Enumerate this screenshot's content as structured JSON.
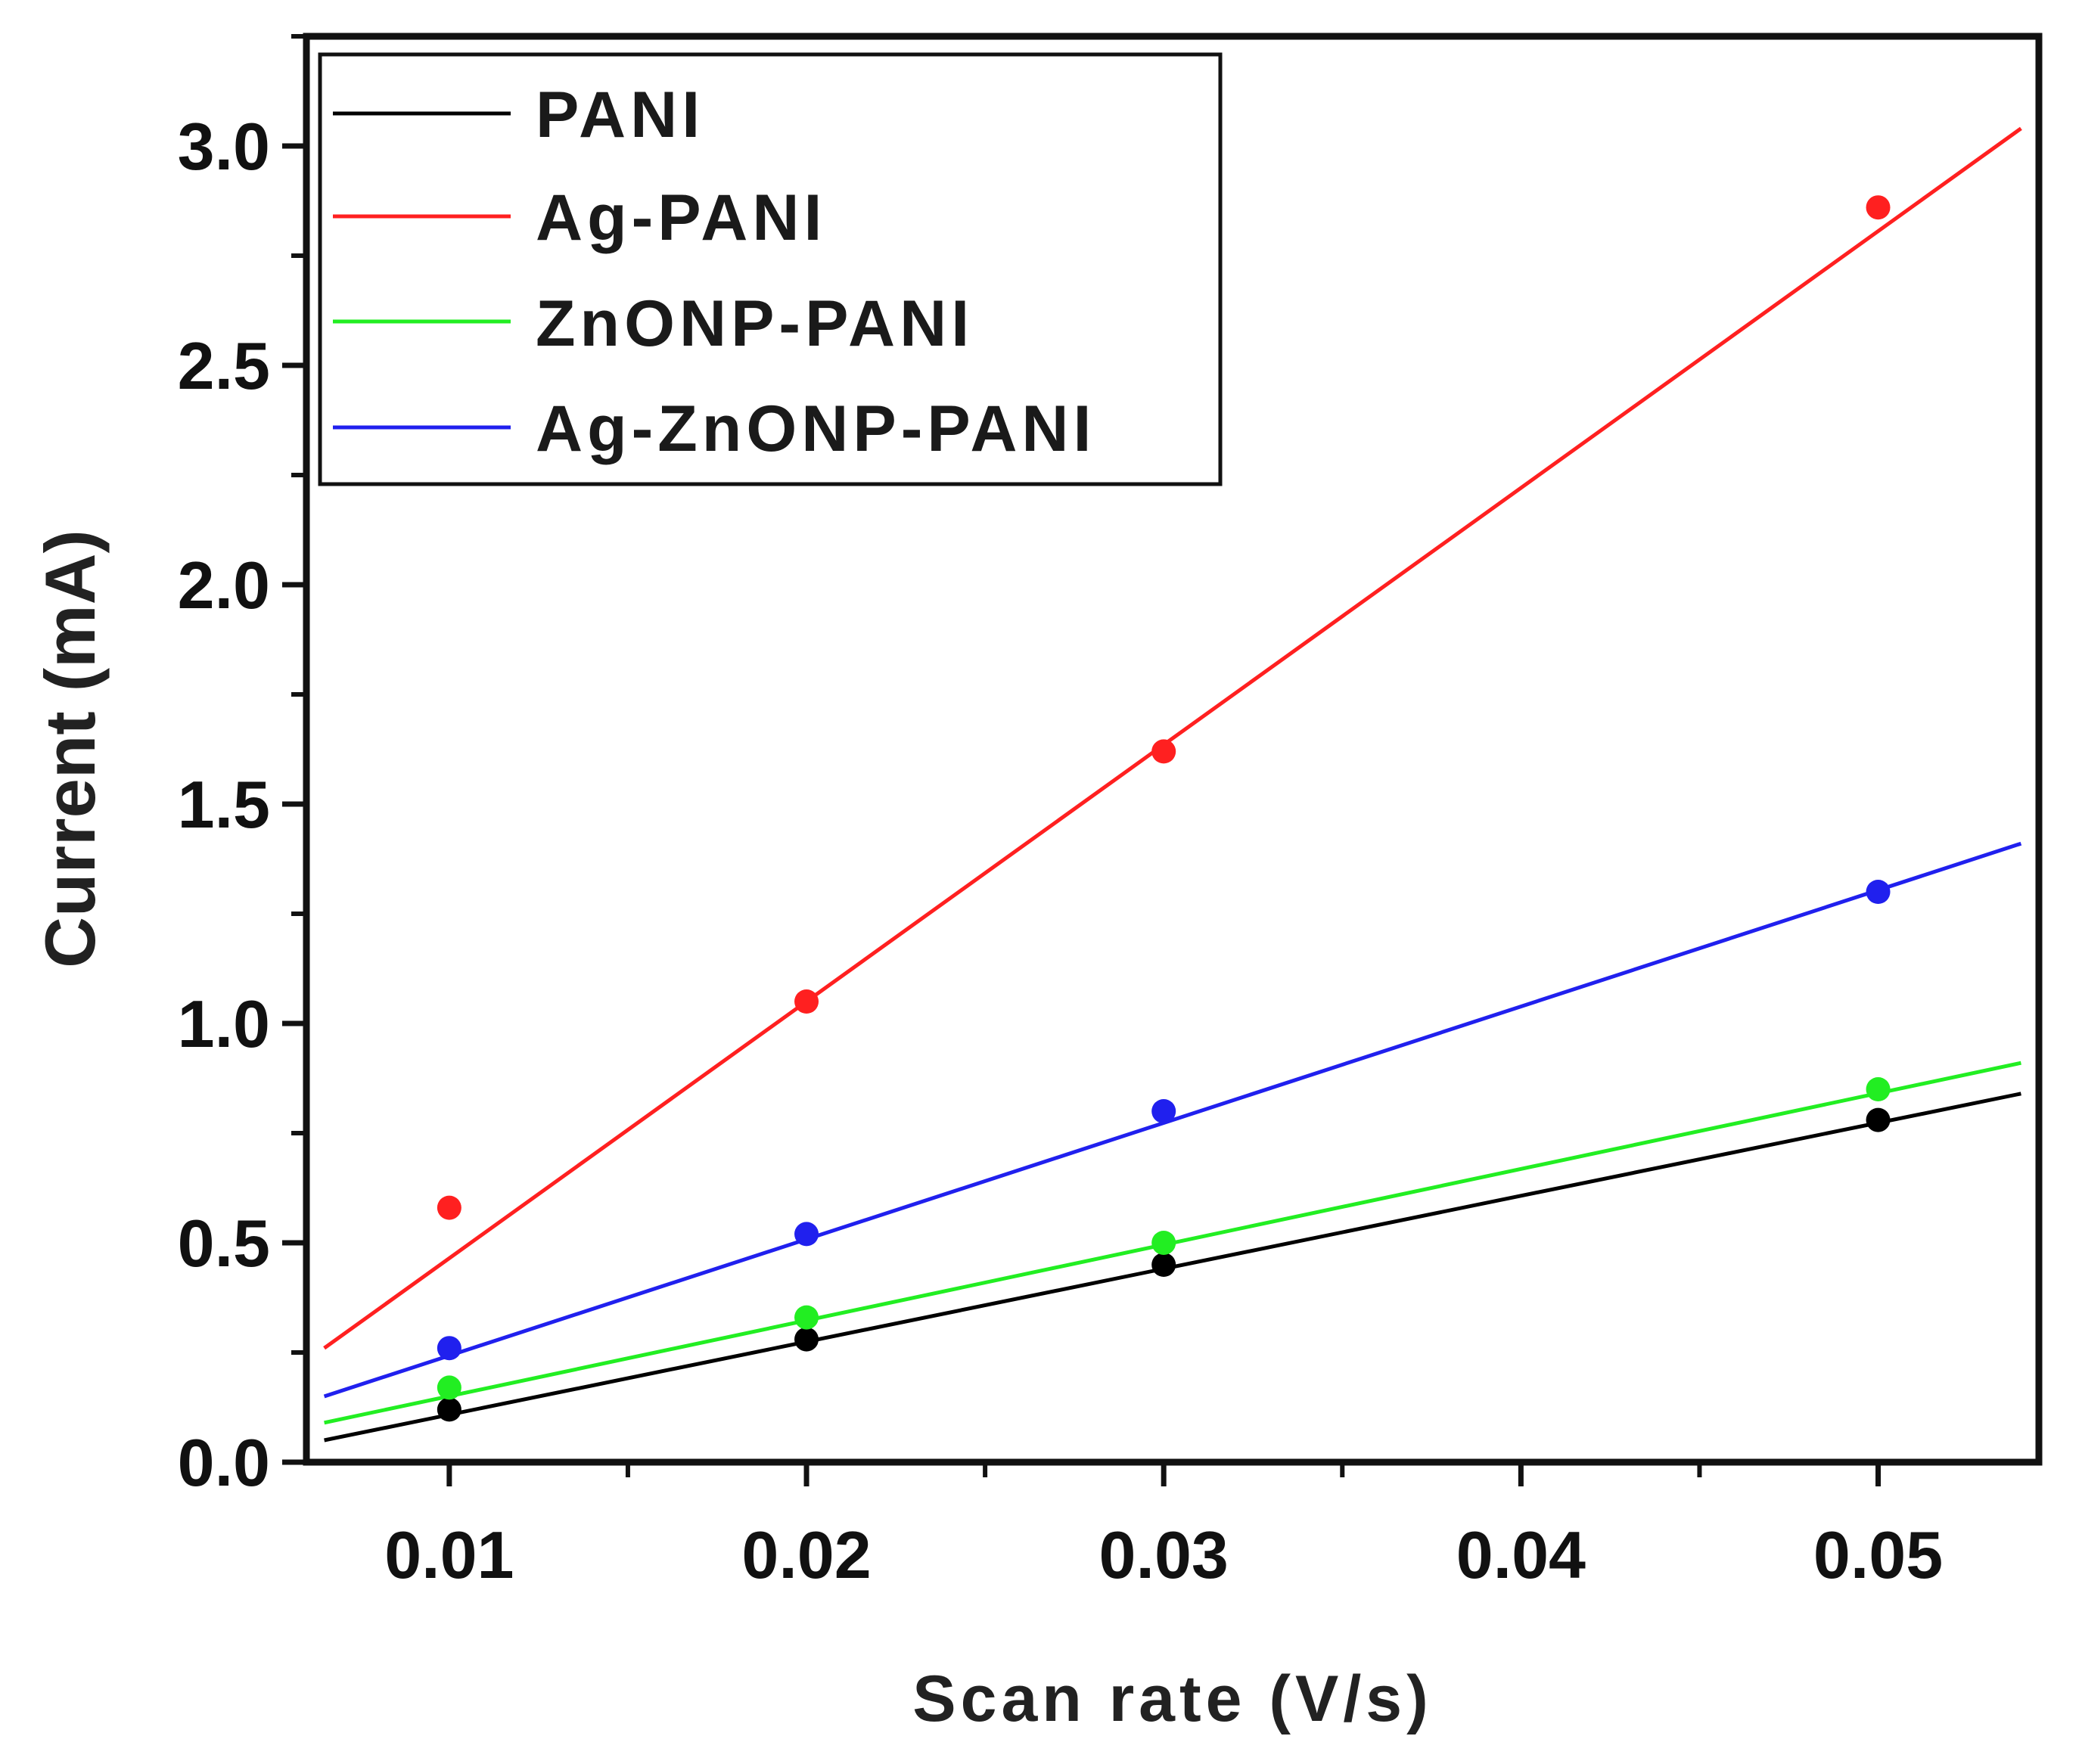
{
  "chart_data": {
    "type": "scatter",
    "title": "",
    "xlabel": "Scan rate (V/s)",
    "ylabel": "Current (mA)",
    "xlim": [
      0.006,
      0.0545
    ],
    "ylim": [
      0.0,
      3.25
    ],
    "xticks": [
      0.01,
      0.02,
      0.03,
      0.04,
      0.05
    ],
    "xtick_labels": [
      "0.01",
      "0.02",
      "0.03",
      "0.04",
      "0.05"
    ],
    "yticks": [
      0.0,
      0.5,
      1.0,
      1.5,
      2.0,
      2.5,
      3.0
    ],
    "ytick_labels": [
      "0.0",
      "0.5",
      "1.0",
      "1.5",
      "2.0",
      "2.5",
      "3.0"
    ],
    "legend_position": "top-left",
    "grid": false,
    "series": [
      {
        "name": "PANI",
        "color": "#000000",
        "points": {
          "x": [
            0.01,
            0.02,
            0.03,
            0.05
          ],
          "y": [
            0.12,
            0.28,
            0.45,
            0.78
          ]
        },
        "fit_line": {
          "x": [
            0.0065,
            0.054
          ],
          "y": [
            0.05,
            0.84
          ]
        }
      },
      {
        "name": "Ag-PANI",
        "color": "#ff2020",
        "points": {
          "x": [
            0.01,
            0.02,
            0.03,
            0.05
          ],
          "y": [
            0.58,
            1.05,
            1.62,
            2.86
          ]
        },
        "fit_line": {
          "x": [
            0.0065,
            0.054
          ],
          "y": [
            0.26,
            3.04
          ]
        }
      },
      {
        "name": "ZnONP-PANI",
        "color": "#22ee22",
        "points": {
          "x": [
            0.01,
            0.02,
            0.03,
            0.05
          ],
          "y": [
            0.17,
            0.33,
            0.5,
            0.85
          ]
        },
        "fit_line": {
          "x": [
            0.0065,
            0.054
          ],
          "y": [
            0.09,
            0.91
          ]
        }
      },
      {
        "name": "Ag-ZnONP-PANI",
        "color": "#2020ee",
        "points": {
          "x": [
            0.01,
            0.02,
            0.03,
            0.05
          ],
          "y": [
            0.26,
            0.52,
            0.8,
            1.3
          ]
        },
        "fit_line": {
          "x": [
            0.0065,
            0.054
          ],
          "y": [
            0.15,
            1.41
          ]
        }
      }
    ]
  }
}
